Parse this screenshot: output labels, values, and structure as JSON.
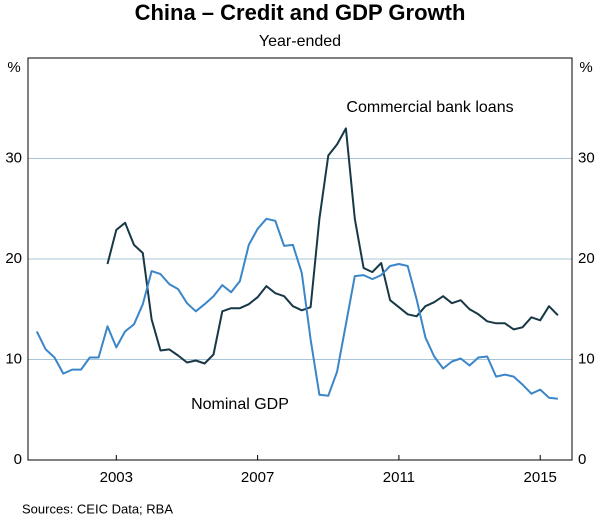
{
  "chart_data": {
    "type": "line",
    "title": "China – Credit and GDP Growth",
    "subtitle": "Year-ended",
    "y_label": "%",
    "y2_label": "%",
    "source": "Sources:  CEIC Data; RBA",
    "x": [
      2001.25,
      2001.5,
      2001.75,
      2002,
      2002.25,
      2002.5,
      2002.75,
      2003,
      2003.25,
      2003.5,
      2003.75,
      2004,
      2004.25,
      2004.5,
      2004.75,
      2005,
      2005.25,
      2005.5,
      2005.75,
      2006,
      2006.25,
      2006.5,
      2006.75,
      2007,
      2007.25,
      2007.5,
      2007.75,
      2008,
      2008.25,
      2008.5,
      2008.75,
      2009,
      2009.25,
      2009.5,
      2009.75,
      2010,
      2010.25,
      2010.5,
      2010.75,
      2011,
      2011.25,
      2011.5,
      2011.75,
      2012,
      2012.25,
      2012.5,
      2012.75,
      2013,
      2013.25,
      2013.5,
      2013.75,
      2014,
      2014.25,
      2014.5,
      2014.75,
      2015,
      2015.25,
      2015.5,
      2015.75,
      2016
    ],
    "series": [
      {
        "name": "Commercial bank loans",
        "color": "#183847",
        "values": [
          null,
          null,
          null,
          null,
          null,
          null,
          null,
          null,
          19.5,
          22.9,
          23.6,
          21.4,
          20.6,
          14.0,
          10.9,
          11.0,
          10.4,
          9.7,
          9.9,
          9.6,
          10.5,
          14.8,
          15.1,
          15.1,
          15.5,
          16.2,
          17.3,
          16.6,
          16.3,
          15.3,
          14.9,
          15.2,
          24.0,
          30.3,
          31.4,
          33.0,
          24.0,
          19.1,
          18.7,
          19.6,
          15.9,
          15.2,
          14.5,
          14.3,
          15.3,
          15.7,
          16.3,
          15.6,
          15.9,
          15.0,
          14.5,
          13.8,
          13.6,
          13.6,
          13.0,
          13.2,
          14.2,
          13.9,
          15.3,
          14.4
        ]
      },
      {
        "name": "Nominal GDP",
        "color": "#3a86c8",
        "values": [
          12.8,
          11.0,
          10.2,
          8.6,
          9.0,
          9.0,
          10.2,
          10.2,
          13.3,
          11.2,
          12.8,
          13.5,
          15.5,
          18.8,
          18.5,
          17.5,
          17.0,
          15.6,
          14.8,
          15.5,
          16.3,
          17.4,
          16.7,
          17.8,
          21.4,
          23.0,
          24.0,
          23.8,
          21.3,
          21.4,
          18.6,
          12.0,
          6.5,
          6.4,
          8.8,
          13.5,
          18.3,
          18.4,
          18.0,
          18.4,
          19.3,
          19.5,
          19.3,
          16.0,
          12.2,
          10.3,
          9.1,
          9.8,
          10.1,
          9.4,
          10.2,
          10.3,
          8.3,
          8.5,
          8.3,
          7.5,
          6.6,
          7.0,
          6.2,
          6.1
        ]
      }
    ],
    "xlim": [
      2001,
      2016.4
    ],
    "xticks": [
      {
        "value": 2003.5,
        "label": "2003"
      },
      {
        "value": 2007.5,
        "label": "2007"
      },
      {
        "value": 2011.5,
        "label": "2011"
      },
      {
        "value": 2015.5,
        "label": "2015"
      }
    ],
    "ylim": [
      0,
      40
    ],
    "yticks": [
      0,
      10,
      20,
      30
    ],
    "y2lim": [
      0,
      40
    ],
    "y2ticks": [
      0,
      10,
      20,
      30
    ],
    "grid": true
  }
}
